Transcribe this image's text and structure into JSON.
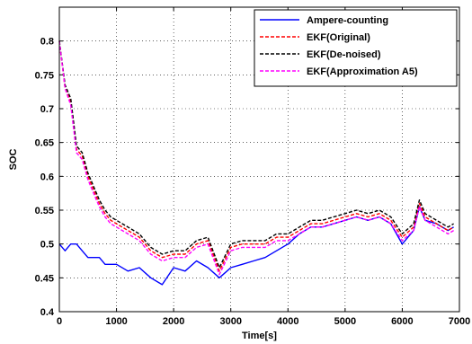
{
  "chart_data": {
    "type": "line",
    "title": "",
    "xlabel": "Time[s]",
    "ylabel": "SOC",
    "xlim": [
      0,
      7000
    ],
    "ylim": [
      0.4,
      0.85
    ],
    "xticks": [
      0,
      1000,
      2000,
      3000,
      4000,
      5000,
      6000,
      7000
    ],
    "xtick_labels": [
      "0",
      "1000",
      "2000",
      "3000",
      "4000",
      "5000",
      "6000",
      "7000"
    ],
    "yticks": [
      0.4,
      0.45,
      0.5,
      0.55,
      0.6,
      0.65,
      0.7,
      0.75,
      0.8
    ],
    "ytick_labels": [
      "0.4",
      "0.45",
      "0.5",
      "0.55",
      "0.6",
      "0.65",
      "0.7",
      "0.75",
      "0.8"
    ],
    "grid": true,
    "legend_position": "top-right",
    "x": [
      0,
      100,
      200,
      300,
      400,
      500,
      600,
      700,
      800,
      900,
      1000,
      1200,
      1400,
      1600,
      1800,
      2000,
      2200,
      2400,
      2600,
      2800,
      3000,
      3200,
      3400,
      3600,
      3800,
      4000,
      4200,
      4400,
      4600,
      4800,
      5000,
      5200,
      5400,
      5600,
      5800,
      6000,
      6200,
      6300,
      6400,
      6600,
      6800,
      6900
    ],
    "series": [
      {
        "name": "Ampere-counting",
        "color": "#0000ff",
        "dash": "solid",
        "values": [
          0.5,
          0.49,
          0.5,
          0.5,
          0.49,
          0.48,
          0.48,
          0.48,
          0.47,
          0.47,
          0.47,
          0.46,
          0.465,
          0.45,
          0.44,
          0.465,
          0.46,
          0.475,
          0.465,
          0.45,
          0.465,
          0.47,
          0.475,
          0.48,
          0.49,
          0.5,
          0.515,
          0.525,
          0.525,
          0.53,
          0.535,
          0.54,
          0.535,
          0.54,
          0.53,
          0.5,
          0.52,
          0.555,
          0.535,
          0.53,
          0.52,
          0.525
        ]
      },
      {
        "name": "EKF(Original)",
        "color": "#ff0000",
        "dash": "dashed",
        "values": [
          0.8,
          0.73,
          0.71,
          0.64,
          0.63,
          0.6,
          0.58,
          0.56,
          0.545,
          0.535,
          0.53,
          0.52,
          0.51,
          0.49,
          0.48,
          0.485,
          0.485,
          0.5,
          0.505,
          0.46,
          0.495,
          0.5,
          0.5,
          0.5,
          0.51,
          0.51,
          0.52,
          0.53,
          0.53,
          0.535,
          0.54,
          0.545,
          0.54,
          0.545,
          0.535,
          0.51,
          0.525,
          0.56,
          0.54,
          0.53,
          0.52,
          0.525
        ]
      },
      {
        "name": "EKF(De-noised)",
        "color": "#000000",
        "dash": "dashed",
        "values": [
          0.8,
          0.735,
          0.715,
          0.645,
          0.635,
          0.605,
          0.585,
          0.565,
          0.55,
          0.54,
          0.535,
          0.525,
          0.515,
          0.495,
          0.485,
          0.49,
          0.49,
          0.505,
          0.51,
          0.465,
          0.5,
          0.505,
          0.505,
          0.505,
          0.515,
          0.515,
          0.525,
          0.535,
          0.535,
          0.54,
          0.545,
          0.55,
          0.545,
          0.55,
          0.54,
          0.515,
          0.53,
          0.565,
          0.545,
          0.535,
          0.525,
          0.53
        ]
      },
      {
        "name": "EKF(Approximation A5)",
        "color": "#ff00ff",
        "dash": "dashed",
        "values": [
          0.8,
          0.73,
          0.705,
          0.635,
          0.625,
          0.595,
          0.575,
          0.555,
          0.54,
          0.53,
          0.525,
          0.515,
          0.505,
          0.485,
          0.475,
          0.48,
          0.48,
          0.495,
          0.5,
          0.455,
          0.49,
          0.495,
          0.495,
          0.495,
          0.505,
          0.505,
          0.515,
          0.525,
          0.525,
          0.53,
          0.535,
          0.54,
          0.535,
          0.54,
          0.53,
          0.505,
          0.52,
          0.555,
          0.535,
          0.525,
          0.515,
          0.52
        ]
      }
    ]
  }
}
